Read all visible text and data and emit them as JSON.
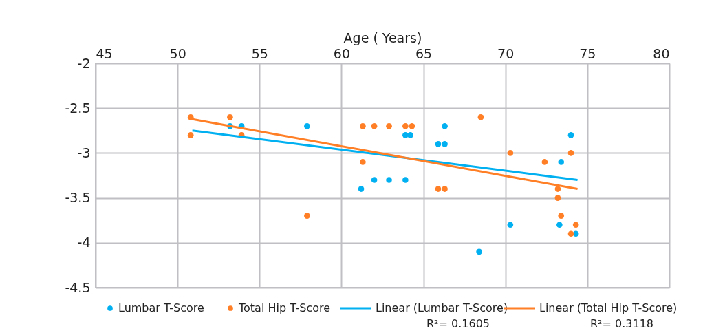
{
  "chart_data": {
    "type": "scatter",
    "xlabel": "Age ( Years)",
    "xlim": [
      45,
      80
    ],
    "xticks": [
      45,
      50,
      55,
      60,
      65,
      70,
      75,
      80
    ],
    "ylim": [
      -4.5,
      -2
    ],
    "yticks": [
      -4.5,
      -4,
      -3.5,
      -3,
      -2.5,
      -2
    ],
    "grid": true,
    "legend": "bottom",
    "marker": "circle",
    "series": [
      {
        "name": "Lumbar T-Score",
        "color": "#00b0f0",
        "x": [
          53.2,
          53.9,
          57.9,
          61.2,
          62.0,
          62.9,
          63.9,
          63.9,
          64.2,
          65.9,
          66.3,
          66.3,
          68.4,
          70.3,
          73.3,
          73.4,
          74.0,
          74.3
        ],
        "values": [
          -2.7,
          -2.7,
          -2.7,
          -3.4,
          -3.3,
          -3.3,
          -3.3,
          -2.8,
          -2.8,
          -2.9,
          -2.9,
          -2.7,
          -4.1,
          -3.8,
          -3.8,
          -3.1,
          -2.8,
          -3.9
        ]
      },
      {
        "name": "Total Hip T-Score",
        "color": "#ff7f27",
        "x": [
          50.8,
          50.8,
          53.2,
          53.9,
          57.9,
          61.3,
          62.0,
          62.9,
          63.9,
          64.3,
          61.3,
          65.9,
          66.3,
          68.5,
          70.3,
          72.4,
          73.2,
          73.2,
          73.4,
          74.3,
          74.0,
          74.0
        ],
        "values": [
          -2.6,
          -2.8,
          -2.6,
          -2.8,
          -3.7,
          -2.7,
          -2.7,
          -2.7,
          -2.7,
          -2.7,
          -3.1,
          -3.4,
          -3.4,
          -2.6,
          -3.0,
          -3.1,
          -3.4,
          -3.5,
          -3.7,
          -3.8,
          -3.9,
          -3.0
        ]
      },
      {
        "name": "Linear (Lumbar T-Score)",
        "type": "line",
        "marker": "none",
        "color": "#00b0f0",
        "x": [
          50.9,
          74.4
        ],
        "values": [
          -2.75,
          -3.3
        ]
      },
      {
        "name": "Linear (Total Hip T-Score)",
        "type": "line",
        "marker": "none",
        "color": "#ff7f27",
        "x": [
          50.8,
          74.4
        ],
        "values": [
          -2.62,
          -3.4
        ]
      }
    ],
    "annotations": [
      "R²= 0.1605",
      "R²= 0.3118"
    ]
  }
}
